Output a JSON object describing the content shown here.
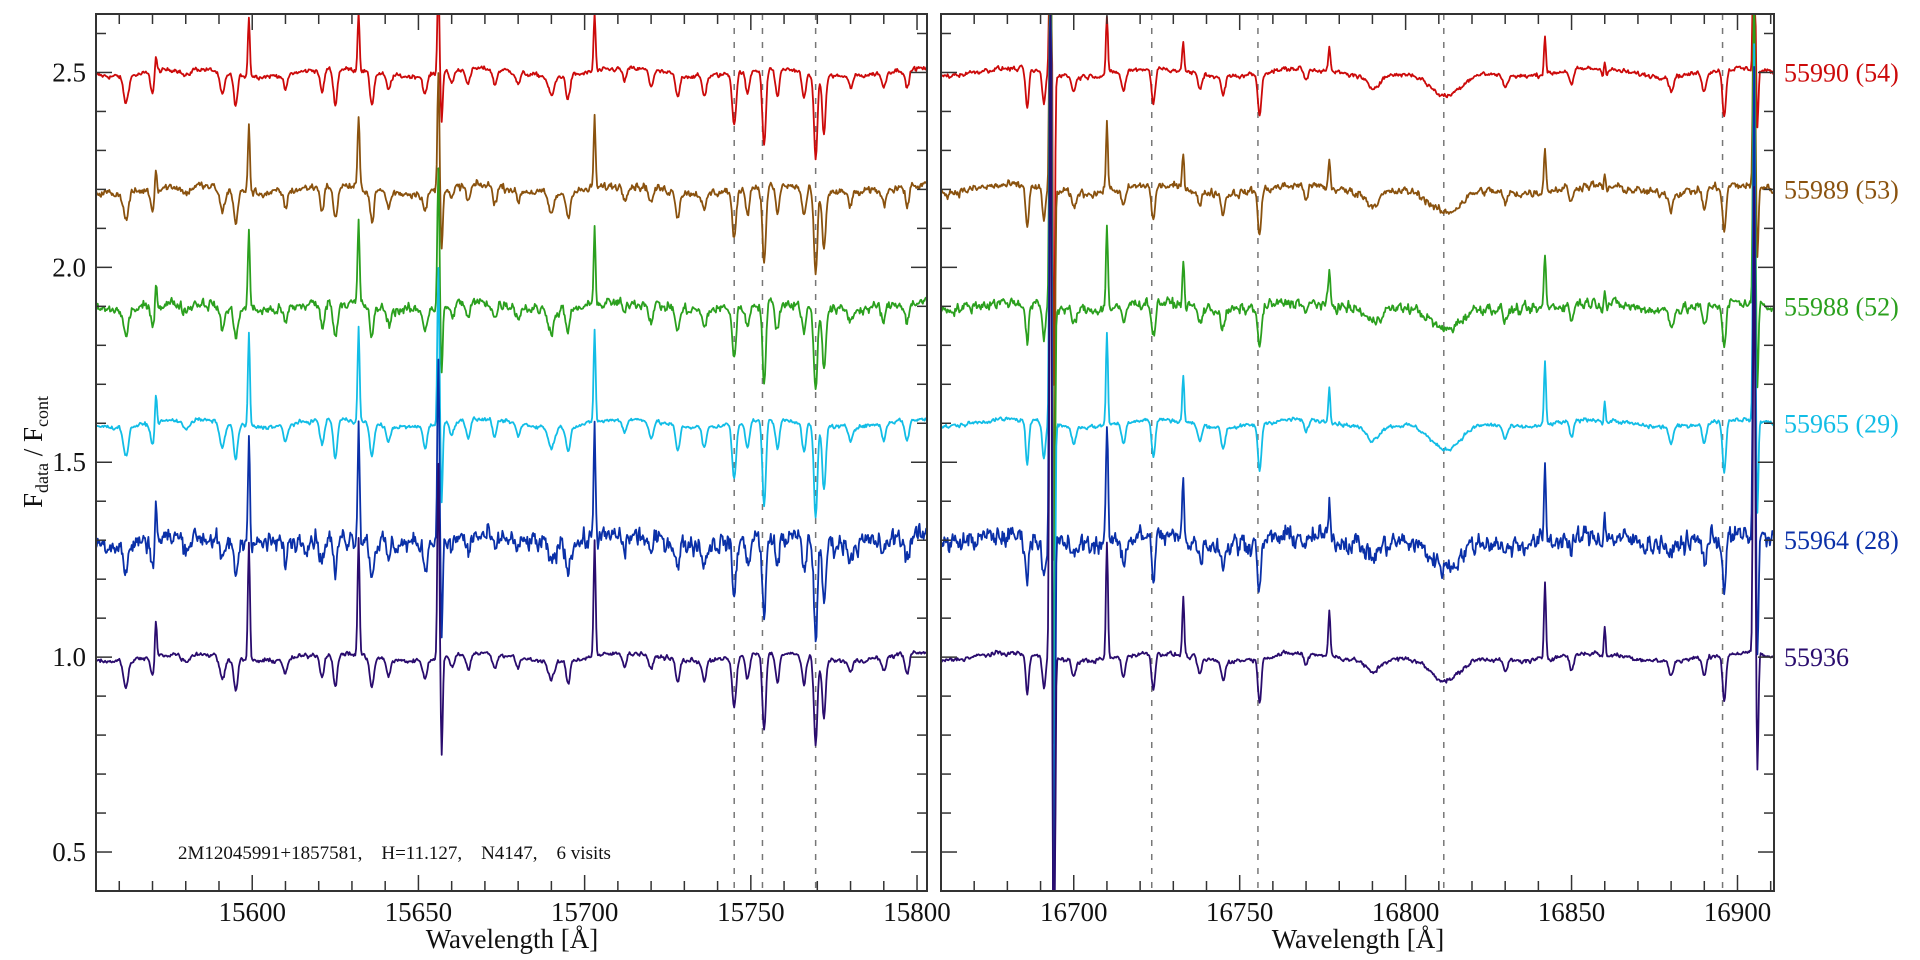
{
  "chart_data": {
    "type": "line",
    "ylabel_main": "F",
    "ylabel_sub_num": "data",
    "ylabel_sep": " / ",
    "ylabel_sub_den": "cont",
    "ylim": [
      0.4,
      2.65
    ],
    "yticks": [
      "0.5",
      "1.0",
      "1.5",
      "2.0",
      "2.5"
    ],
    "annotation": "2M12045991+1857581,    H=11.127,    N4147,    6 visits",
    "panels": [
      {
        "xlabel": "Wavelength [Å]",
        "xlim": [
          15553,
          15803
        ],
        "xticks": [
          "15600",
          "15650",
          "15700",
          "15750",
          "15800"
        ],
        "dashed_lines": [
          15745,
          15753.5,
          15769.5
        ]
      },
      {
        "xlabel": "Wavelength [Å]",
        "xlim": [
          16660,
          16911
        ],
        "xticks": [
          "16700",
          "16750",
          "16800",
          "16850",
          "16900"
        ],
        "dashed_lines": [
          16723.5,
          16755.5,
          16811.5,
          16895.5
        ]
      }
    ],
    "series": [
      {
        "name": "55990 (54)",
        "offset": 2.5,
        "color": "#cc0a0a",
        "noise": 0.008,
        "absorb_scale": 1.0,
        "spike_scale": 0.5
      },
      {
        "name": "55989 (53)",
        "offset": 2.2,
        "color": "#8a520e",
        "noise": 0.014,
        "absorb_scale": 1.0,
        "spike_scale": 0.6
      },
      {
        "name": "55988 (52)",
        "offset": 1.9,
        "color": "#2ba01e",
        "noise": 0.018,
        "absorb_scale": 1.0,
        "spike_scale": 0.7
      },
      {
        "name": "55965 (29)",
        "offset": 1.6,
        "color": "#12bde6",
        "noise": 0.007,
        "absorb_scale": 1.1,
        "spike_scale": 0.8
      },
      {
        "name": "55964 (28)",
        "offset": 1.3,
        "color": "#0a30a8",
        "noise": 0.035,
        "absorb_scale": 1.1,
        "spike_scale": 1.0
      },
      {
        "name": "55936",
        "offset": 1.0,
        "color": "#2a0c6e",
        "noise": 0.008,
        "absorb_scale": 1.0,
        "spike_scale": 1.0
      }
    ],
    "absorption_lines": [
      [
        15562,
        0.07,
        1.2
      ],
      [
        15570,
        0.05,
        1.0
      ],
      [
        15580,
        0.02,
        2
      ],
      [
        15591,
        0.06,
        1.2
      ],
      [
        15595,
        0.08,
        1.0
      ],
      [
        15610,
        0.04,
        1.0
      ],
      [
        15621,
        0.06,
        1.0
      ],
      [
        15625,
        0.09,
        1.0
      ],
      [
        15636,
        0.08,
        1.0
      ],
      [
        15641,
        0.04,
        1.0
      ],
      [
        15652,
        0.05,
        1.0
      ],
      [
        15660,
        0.03,
        1
      ],
      [
        15665,
        0.04,
        1.0
      ],
      [
        15673,
        0.04,
        1.0
      ],
      [
        15680,
        0.03,
        1.0
      ],
      [
        15690,
        0.05,
        1.5
      ],
      [
        15695,
        0.06,
        1.0
      ],
      [
        15712,
        0.03,
        1.0
      ],
      [
        15720,
        0.04,
        1.0
      ],
      [
        15728,
        0.06,
        1.0
      ],
      [
        15736,
        0.05,
        1.0
      ],
      [
        15745,
        0.13,
        1.0
      ],
      [
        15749,
        0.06,
        1.0
      ],
      [
        15754,
        0.2,
        0.9
      ],
      [
        15758,
        0.07,
        1.0
      ],
      [
        15766,
        0.07,
        1.0
      ],
      [
        15769.5,
        0.22,
        0.9
      ],
      [
        15772,
        0.15,
        0.9
      ],
      [
        15780,
        0.03,
        1.0
      ],
      [
        15790,
        0.04,
        1.0
      ],
      [
        15797,
        0.05,
        1.0
      ],
      [
        16686,
        0.1,
        0.8
      ],
      [
        16691,
        0.08,
        0.8
      ],
      [
        16700,
        0.04,
        1
      ],
      [
        16715,
        0.05,
        1.0
      ],
      [
        16724,
        0.09,
        0.9
      ],
      [
        16738,
        0.04,
        1
      ],
      [
        16745,
        0.05,
        1.0
      ],
      [
        16756,
        0.11,
        0.9
      ],
      [
        16770,
        0.03,
        1
      ],
      [
        16790,
        0.03,
        3
      ],
      [
        16812,
        0.07,
        8
      ],
      [
        16830,
        0.03,
        1
      ],
      [
        16850,
        0.04,
        1
      ],
      [
        16860,
        0.03,
        1
      ],
      [
        16880,
        0.04,
        1.0
      ],
      [
        16890,
        0.05,
        1.0
      ],
      [
        16896,
        0.12,
        0.9
      ]
    ],
    "emission_spikes": [
      [
        15571,
        0.1
      ],
      [
        15599,
        0.3
      ],
      [
        15632,
        0.3
      ],
      [
        15656,
        0.5
      ],
      [
        15657,
        -0.25
      ],
      [
        15703,
        0.3
      ],
      [
        16693,
        1.8
      ],
      [
        16694,
        -1.6
      ],
      [
        16710,
        0.3
      ],
      [
        16733,
        0.15
      ],
      [
        16777,
        0.12
      ],
      [
        16842,
        0.2
      ],
      [
        16860,
        0.1
      ],
      [
        16905,
        1.2
      ],
      [
        16906,
        -0.3
      ]
    ]
  }
}
